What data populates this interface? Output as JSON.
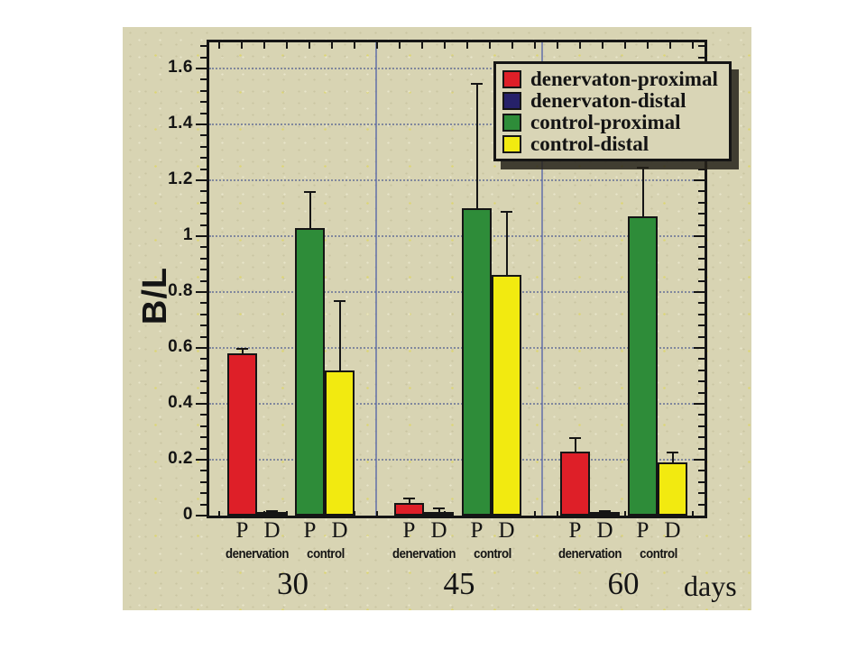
{
  "paper_color": "#d8d4b3",
  "chart_data": {
    "type": "bar",
    "title": "",
    "ylabel": "B/L",
    "x_unit_label": "days",
    "ylim": [
      0,
      1.69
    ],
    "ytick_labels": [
      "0",
      "0.2",
      "0.4",
      "0.6",
      "0.8",
      "1",
      "1.2",
      "1.4",
      "1.6"
    ],
    "ytick_values": [
      0,
      0.2,
      0.4,
      0.6,
      0.8,
      1.0,
      1.2,
      1.4,
      1.6
    ],
    "grid": true,
    "legend_position": "top-right",
    "legend": [
      {
        "label": "denervaton-proximal",
        "color": "#de1f28"
      },
      {
        "label": "denervaton-distal",
        "color": "#262169"
      },
      {
        "label": "control-proximal",
        "color": "#2e8c39"
      },
      {
        "label": "control-distal",
        "color": "#f2ea10"
      }
    ],
    "bar_letter_labels": [
      "P",
      "D",
      "P",
      "D"
    ],
    "subgroup_labels": [
      "denervation",
      "control"
    ],
    "groups": [
      {
        "label": "30",
        "values": [
          0.58,
          0.01,
          1.03,
          0.52
        ],
        "err_top": [
          0.6,
          0.02,
          1.16,
          0.77
        ]
      },
      {
        "label": "45",
        "values": [
          0.045,
          0.01,
          1.1,
          0.86
        ],
        "err_top": [
          0.065,
          0.03,
          1.55,
          1.09
        ]
      },
      {
        "label": "60",
        "values": [
          0.23,
          0.01,
          1.07,
          0.19
        ],
        "err_top": [
          0.28,
          0.02,
          1.25,
          0.23
        ]
      }
    ],
    "colors": {
      "grid_blue": "#4a5590",
      "axis": "#151515"
    }
  }
}
